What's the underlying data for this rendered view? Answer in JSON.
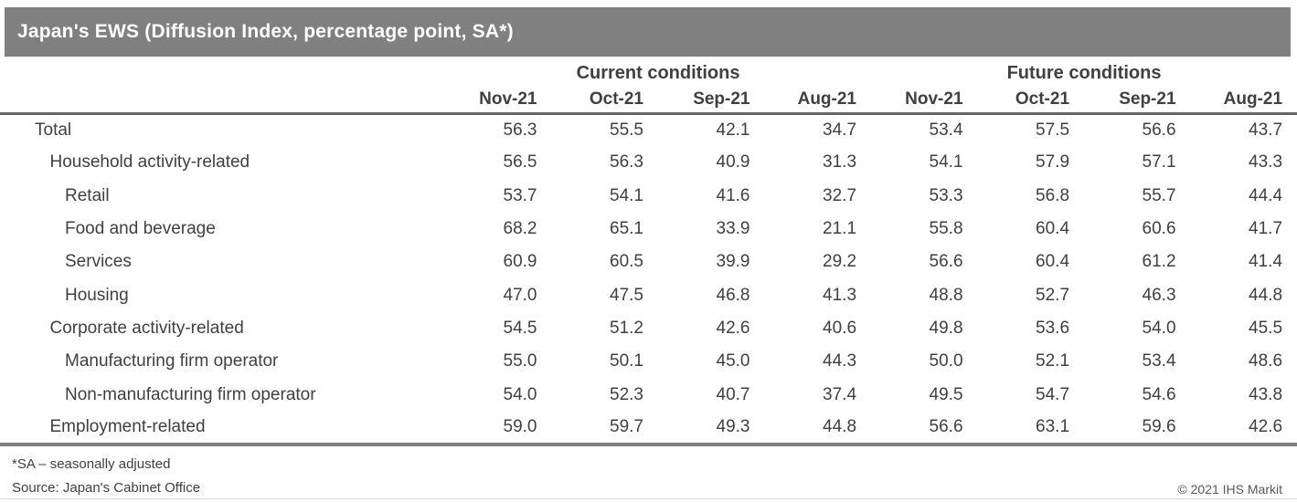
{
  "title": "Japan's EWS (Diffusion Index, percentage point, SA*)",
  "colors": {
    "title_bar_bg": "#808080",
    "title_text": "#ffffff",
    "body_text": "#404040",
    "header_rule": "#666666",
    "footer_rule": "#808080",
    "copyright_text": "#595959"
  },
  "chart_data": {
    "type": "table",
    "title": "Japan's EWS (Diffusion Index, percentage point, SA*)",
    "column_groups": [
      {
        "label": "Current conditions",
        "span": 4
      },
      {
        "label": "Future conditions",
        "span": 4
      }
    ],
    "columns": [
      "Nov-21",
      "Oct-21",
      "Sep-21",
      "Aug-21",
      "Nov-21",
      "Oct-21",
      "Sep-21",
      "Aug-21"
    ],
    "rows": [
      {
        "label": "Total",
        "indent": 0,
        "values": [
          56.3,
          55.5,
          42.1,
          34.7,
          53.4,
          57.5,
          56.6,
          43.7
        ]
      },
      {
        "label": "Household activity-related",
        "indent": 1,
        "values": [
          56.5,
          56.3,
          40.9,
          31.3,
          54.1,
          57.9,
          57.1,
          43.3
        ]
      },
      {
        "label": "Retail",
        "indent": 2,
        "values": [
          53.7,
          54.1,
          41.6,
          32.7,
          53.3,
          56.8,
          55.7,
          44.4
        ]
      },
      {
        "label": "Food and beverage",
        "indent": 2,
        "values": [
          68.2,
          65.1,
          33.9,
          21.1,
          55.8,
          60.4,
          60.6,
          41.7
        ]
      },
      {
        "label": "Services",
        "indent": 2,
        "values": [
          60.9,
          60.5,
          39.9,
          29.2,
          56.6,
          60.4,
          61.2,
          41.4
        ]
      },
      {
        "label": "Housing",
        "indent": 2,
        "values": [
          47.0,
          47.5,
          46.8,
          41.3,
          48.8,
          52.7,
          46.3,
          44.8
        ]
      },
      {
        "label": "Corporate activity-related",
        "indent": 1,
        "values": [
          54.5,
          51.2,
          42.6,
          40.6,
          49.8,
          53.6,
          54.0,
          45.5
        ]
      },
      {
        "label": "Manufacturing firm operator",
        "indent": 2,
        "values": [
          55.0,
          50.1,
          45.0,
          44.3,
          50.0,
          52.1,
          53.4,
          48.6
        ]
      },
      {
        "label": "Non-manufacturing firm operator",
        "indent": 2,
        "values": [
          54.0,
          52.3,
          40.7,
          37.4,
          49.5,
          54.7,
          54.6,
          43.8
        ]
      },
      {
        "label": "Employment-related",
        "indent": 1,
        "values": [
          59.0,
          59.7,
          49.3,
          44.8,
          56.6,
          63.1,
          59.6,
          42.6
        ]
      }
    ]
  },
  "footnotes": {
    "sa_note": "*SA – seasonally adjusted",
    "source": "Source: Japan's Cabinet Office",
    "copyright": "© 2021 IHS Markit"
  }
}
